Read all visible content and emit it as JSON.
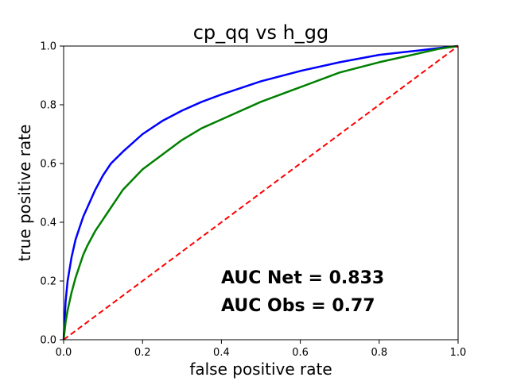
{
  "chart_data": {
    "type": "line",
    "title": "cp_qq vs h_gg",
    "xlabel": "false positive rate",
    "ylabel": "true positive rate",
    "xlim": [
      0,
      1
    ],
    "ylim": [
      0,
      1
    ],
    "xticks": [
      "0.0",
      "0.2",
      "0.4",
      "0.6",
      "0.8",
      "1.0"
    ],
    "yticks": [
      "0.0",
      "0.2",
      "0.4",
      "0.6",
      "0.8",
      "1.0"
    ],
    "grid": false,
    "annotations": [
      "AUC Net = 0.833",
      "AUC Obs = 0.77"
    ],
    "series": [
      {
        "color": "#0000ff",
        "x": [
          0,
          0.005,
          0.01,
          0.02,
          0.03,
          0.04,
          0.05,
          0.06,
          0.08,
          0.1,
          0.12,
          0.15,
          0.2,
          0.25,
          0.3,
          0.35,
          0.4,
          0.5,
          0.6,
          0.7,
          0.8,
          0.9,
          0.95,
          1.0
        ],
        "y": [
          0,
          0.13,
          0.2,
          0.28,
          0.34,
          0.38,
          0.42,
          0.45,
          0.51,
          0.56,
          0.6,
          0.64,
          0.7,
          0.745,
          0.78,
          0.81,
          0.835,
          0.88,
          0.915,
          0.945,
          0.97,
          0.985,
          0.993,
          1.0
        ]
      },
      {
        "color": "#008000",
        "x": [
          0,
          0.005,
          0.01,
          0.02,
          0.03,
          0.04,
          0.05,
          0.06,
          0.08,
          0.1,
          0.12,
          0.15,
          0.2,
          0.25,
          0.3,
          0.35,
          0.4,
          0.5,
          0.6,
          0.7,
          0.8,
          0.9,
          0.95,
          1.0
        ],
        "y": [
          0,
          0.06,
          0.1,
          0.16,
          0.21,
          0.25,
          0.29,
          0.32,
          0.37,
          0.41,
          0.45,
          0.51,
          0.58,
          0.63,
          0.68,
          0.72,
          0.75,
          0.81,
          0.86,
          0.91,
          0.945,
          0.975,
          0.99,
          1.0
        ]
      },
      {
        "color": "#ff0000",
        "dashed": true,
        "x": [
          0,
          1
        ],
        "y": [
          0,
          1
        ]
      }
    ]
  }
}
